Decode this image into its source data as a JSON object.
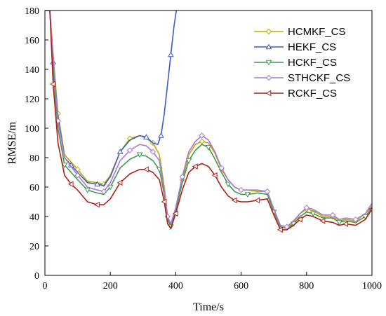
{
  "chart_data": {
    "type": "line",
    "xlabel": "Time/s",
    "ylabel": "RMSE/m",
    "xlim": [
      0,
      1000
    ],
    "ylim": [
      0,
      180
    ],
    "xticks": [
      0,
      200,
      400,
      600,
      800,
      1000
    ],
    "yticks": [
      0,
      20,
      40,
      60,
      80,
      100,
      120,
      140,
      160,
      180
    ],
    "grid": false,
    "legend": "top-right",
    "series": [
      {
        "name": "HCMKF_CS",
        "color": "#c8a800",
        "marker": "diamond",
        "x": [
          0,
          15,
          25,
          40,
          60,
          80,
          100,
          130,
          160,
          180,
          200,
          230,
          260,
          290,
          310,
          330,
          350,
          365,
          375,
          385,
          400,
          420,
          440,
          460,
          480,
          500,
          520,
          540,
          560,
          580,
          600,
          620,
          650,
          680,
          700,
          720,
          740,
          760,
          780,
          800,
          820,
          850,
          880,
          900,
          920,
          950,
          980,
          1000
        ],
        "y": [
          180,
          180,
          150,
          110,
          82,
          77,
          72,
          64,
          63,
          62,
          68,
          84,
          93,
          95,
          93,
          90,
          82,
          60,
          40,
          34,
          45,
          65,
          82,
          89,
          91,
          90,
          83,
          72,
          65,
          60,
          58,
          58,
          57,
          57,
          45,
          34,
          33,
          36,
          42,
          45,
          44,
          40,
          40,
          37,
          38,
          37,
          42,
          47
        ]
      },
      {
        "name": "HEKF_CS",
        "color": "#3a5ec8",
        "marker": "triangle-up",
        "x": [
          0,
          15,
          25,
          40,
          60,
          80,
          100,
          130,
          160,
          180,
          200,
          230,
          260,
          290,
          310,
          330,
          345,
          355,
          365,
          375,
          385,
          395,
          402
        ],
        "y": [
          180,
          180,
          145,
          108,
          80,
          75,
          70,
          63,
          62,
          61,
          67,
          84,
          92,
          95,
          94,
          90,
          89,
          95,
          110,
          130,
          150,
          170,
          180
        ]
      },
      {
        "name": "HCKF_CS",
        "color": "#3c9a52",
        "marker": "triangle-down",
        "x": [
          0,
          15,
          25,
          40,
          60,
          80,
          100,
          130,
          160,
          180,
          200,
          230,
          260,
          290,
          310,
          330,
          350,
          365,
          375,
          385,
          400,
          420,
          440,
          460,
          480,
          500,
          520,
          540,
          560,
          580,
          600,
          620,
          650,
          680,
          700,
          720,
          740,
          760,
          780,
          800,
          820,
          850,
          880,
          900,
          920,
          950,
          980,
          1000
        ],
        "y": [
          180,
          180,
          140,
          100,
          75,
          70,
          65,
          58,
          56,
          55,
          60,
          73,
          79,
          82,
          81,
          78,
          72,
          55,
          38,
          33,
          44,
          63,
          78,
          85,
          89,
          87,
          79,
          70,
          62,
          57,
          55,
          55,
          56,
          55,
          43,
          33,
          32,
          35,
          40,
          43,
          42,
          39,
          39,
          36,
          37,
          36,
          40,
          46
        ]
      },
      {
        "name": "STHCKF_CS",
        "color": "#a878d8",
        "marker": "diamond",
        "x": [
          0,
          15,
          25,
          40,
          60,
          80,
          100,
          130,
          160,
          180,
          200,
          230,
          260,
          290,
          310,
          330,
          350,
          365,
          375,
          385,
          400,
          420,
          440,
          460,
          480,
          500,
          520,
          540,
          560,
          580,
          600,
          620,
          650,
          680,
          700,
          720,
          740,
          760,
          780,
          800,
          820,
          850,
          880,
          900,
          920,
          950,
          980,
          1000
        ],
        "y": [
          180,
          180,
          150,
          105,
          80,
          74,
          68,
          60,
          58,
          57,
          63,
          78,
          85,
          89,
          88,
          84,
          78,
          58,
          40,
          35,
          46,
          67,
          84,
          91,
          95,
          92,
          84,
          73,
          65,
          60,
          58,
          58,
          58,
          57,
          45,
          34,
          33,
          37,
          42,
          46,
          45,
          41,
          41,
          38,
          39,
          38,
          42,
          49
        ]
      },
      {
        "name": "RCKF_CS",
        "color": "#b41e14",
        "marker": "triangle-left",
        "x": [
          0,
          15,
          25,
          40,
          60,
          80,
          100,
          130,
          160,
          180,
          200,
          230,
          260,
          290,
          310,
          330,
          350,
          365,
          375,
          385,
          400,
          420,
          440,
          460,
          480,
          500,
          520,
          540,
          560,
          580,
          600,
          620,
          650,
          680,
          700,
          720,
          740,
          760,
          780,
          800,
          820,
          850,
          880,
          900,
          920,
          950,
          980,
          1000
        ],
        "y": [
          180,
          180,
          130,
          90,
          68,
          62,
          58,
          50,
          48,
          48,
          52,
          63,
          69,
          72,
          72,
          70,
          65,
          50,
          35,
          32,
          42,
          58,
          70,
          74,
          76,
          74,
          68,
          60,
          54,
          51,
          50,
          50,
          51,
          52,
          41,
          31,
          31,
          34,
          38,
          41,
          40,
          37,
          36,
          34,
          35,
          34,
          38,
          45
        ]
      }
    ]
  }
}
